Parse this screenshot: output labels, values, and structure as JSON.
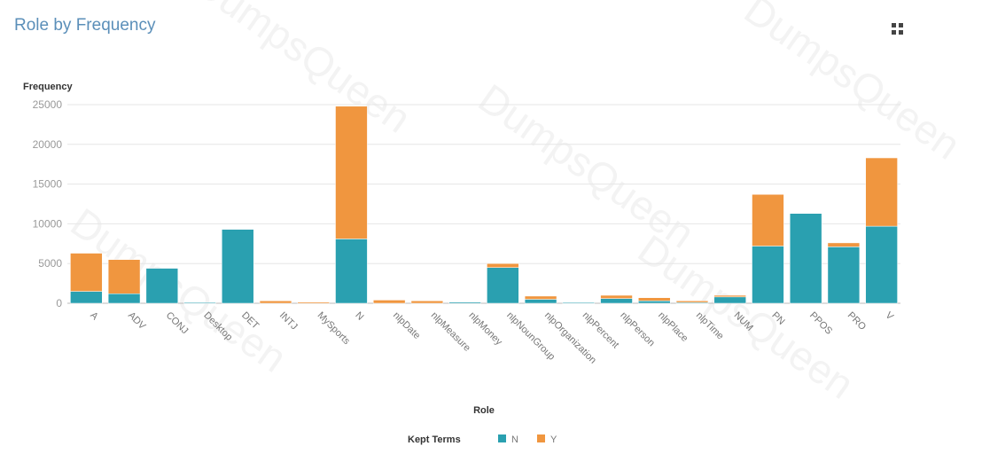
{
  "title": "Role by Frequency",
  "menu_icon": "grid-icon",
  "watermark": "DumpsQueen",
  "chart_data": {
    "type": "bar",
    "stacked": true,
    "ylabel": "Frequency",
    "xlabel": "Role",
    "ylim": [
      0,
      25000
    ],
    "yticks": [
      0,
      5000,
      10000,
      15000,
      20000,
      25000
    ],
    "grid": true,
    "legend": {
      "title": "Kept Terms",
      "placement": "bottom-center"
    },
    "categories": [
      "A",
      "ADV",
      "CONJ",
      "Desktop",
      "DET",
      "INTJ",
      "MySports",
      "N",
      "nlpDate",
      "nlpMeasure",
      "nlpMoney",
      "nlpNounGroup",
      "nlpOrganization",
      "nlpPercent",
      "nlpPerson",
      "nlpPlace",
      "nlpTime",
      "NUM",
      "PN",
      "PPOS",
      "PRO",
      "V"
    ],
    "series": [
      {
        "name": "N",
        "color": "#2aa0b0",
        "values": [
          1500,
          1200,
          4400,
          100,
          9300,
          0,
          0,
          8100,
          0,
          0,
          150,
          4500,
          500,
          100,
          600,
          300,
          100,
          800,
          7200,
          11300,
          7100,
          9700
        ]
      },
      {
        "name": "Y",
        "color": "#f0963f",
        "values": [
          4800,
          4300,
          0,
          0,
          0,
          300,
          150,
          16700,
          400,
          300,
          0,
          500,
          400,
          0,
          400,
          400,
          200,
          200,
          6500,
          0,
          500,
          8600
        ]
      }
    ]
  }
}
